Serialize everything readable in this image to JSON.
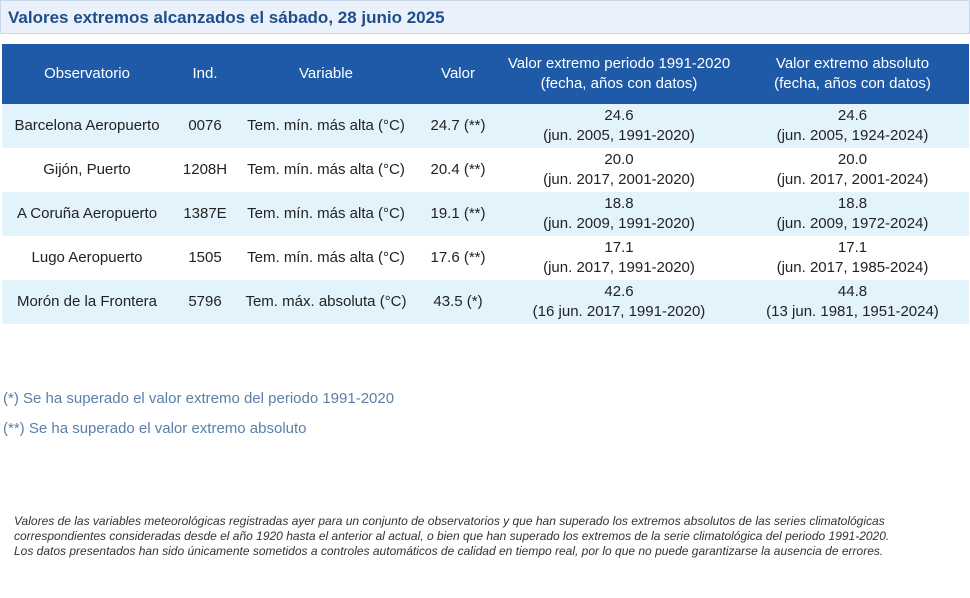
{
  "title": "Valores extremos alcanzados el sábado, 28 junio 2025",
  "table": {
    "headers": [
      {
        "line1": "Observatorio",
        "line2": ""
      },
      {
        "line1": "Ind.",
        "line2": ""
      },
      {
        "line1": "Variable",
        "line2": ""
      },
      {
        "line1": "Valor",
        "line2": ""
      },
      {
        "line1": "Valor extremo periodo 1991-2020",
        "line2": "(fecha, años con datos)"
      },
      {
        "line1": "Valor extremo absoluto",
        "line2": "(fecha, años con datos)"
      }
    ],
    "rows": [
      {
        "station": "Barcelona Aeropuerto",
        "ind": "0076",
        "variable": "Tem. mín. más alta (°C)",
        "value": "24.7 (**)",
        "period_value": "24.6",
        "period_detail": "(jun. 2005, 1991-2020)",
        "abs_value": "24.6",
        "abs_detail": "(jun. 2005, 1924-2024)"
      },
      {
        "station": "Gijón, Puerto",
        "ind": "1208H",
        "variable": "Tem. mín. más alta (°C)",
        "value": "20.4 (**)",
        "period_value": "20.0",
        "period_detail": "(jun. 2017, 2001-2020)",
        "abs_value": "20.0",
        "abs_detail": "(jun. 2017, 2001-2024)"
      },
      {
        "station": "A Coruña Aeropuerto",
        "ind": "1387E",
        "variable": "Tem. mín. más alta (°C)",
        "value": "19.1 (**)",
        "period_value": "18.8",
        "period_detail": "(jun. 2009, 1991-2020)",
        "abs_value": "18.8",
        "abs_detail": "(jun. 2009, 1972-2024)"
      },
      {
        "station": "Lugo Aeropuerto",
        "ind": "1505",
        "variable": "Tem. mín. más alta (°C)",
        "value": "17.6 (**)",
        "period_value": "17.1",
        "period_detail": "(jun. 2017, 1991-2020)",
        "abs_value": "17.1",
        "abs_detail": "(jun. 2017, 1985-2024)"
      },
      {
        "station": "Morón de la Frontera",
        "ind": "5796",
        "variable": "Tem. máx. absoluta (°C)",
        "value": "43.5 (*)",
        "period_value": "42.6",
        "period_detail": "(16 jun. 2017, 1991-2020)",
        "abs_value": "44.8",
        "abs_detail": "(13 jun. 1981, 1951-2024)"
      }
    ]
  },
  "legend": {
    "single": "(*) Se ha superado el valor extremo del periodo 1991-2020",
    "double": "(**) Se ha superado el valor extremo absoluto"
  },
  "note": {
    "p1": "Valores de las variables meteorológicas registradas ayer para un conjunto de observatorios y que han superado los extremos absolutos de las series climatológicas correspondientes consideradas desde el año 1920 hasta el anterior al actual, o bien que han superado los extremos de la serie climatológica del periodo 1991-2020.",
    "p2": "Los datos presentados han sido únicamente sometidos a controles automáticos de calidad en tiempo real, por lo que no puede garantizarse la ausencia de errores."
  },
  "colors": {
    "header_bg": "#1f5aa8",
    "title_color": "#1f4e8c",
    "odd_row_bg": "#e3f3fb",
    "legend_color": "#5a7fa8"
  }
}
